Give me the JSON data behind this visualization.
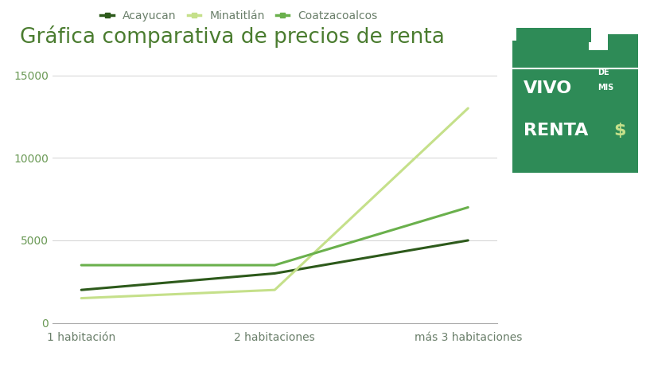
{
  "title": "Gráfica comparativa de precios de renta",
  "title_color": "#4a7c2f",
  "title_fontsize": 19,
  "background_color": "#ffffff",
  "categories": [
    "1 habitación",
    "2 habitaciones",
    "más 3 habitaciones"
  ],
  "series": [
    {
      "label": "Acayucan",
      "values": [
        2000,
        3000,
        5000
      ],
      "color": "#2d5a1b",
      "linewidth": 2.2
    },
    {
      "label": "Minatitlán",
      "values": [
        1500,
        2000,
        13000
      ],
      "color": "#c5e08a",
      "linewidth": 2.2
    },
    {
      "label": "Coatzacoalcos",
      "values": [
        3500,
        3500,
        7000
      ],
      "color": "#6ab04c",
      "linewidth": 2.2
    }
  ],
  "ylim": [
    0,
    16000
  ],
  "yticks": [
    0,
    5000,
    10000,
    15000
  ],
  "grid_color": "#cccccc",
  "grid_alpha": 0.9,
  "legend_fontsize": 10,
  "axis_fontsize": 10,
  "tick_color": "#6a9955",
  "logo_bg_color": "#2e8b57",
  "logo_text_color": "#ffffff",
  "logo_dollar_color": "#c5e08a"
}
